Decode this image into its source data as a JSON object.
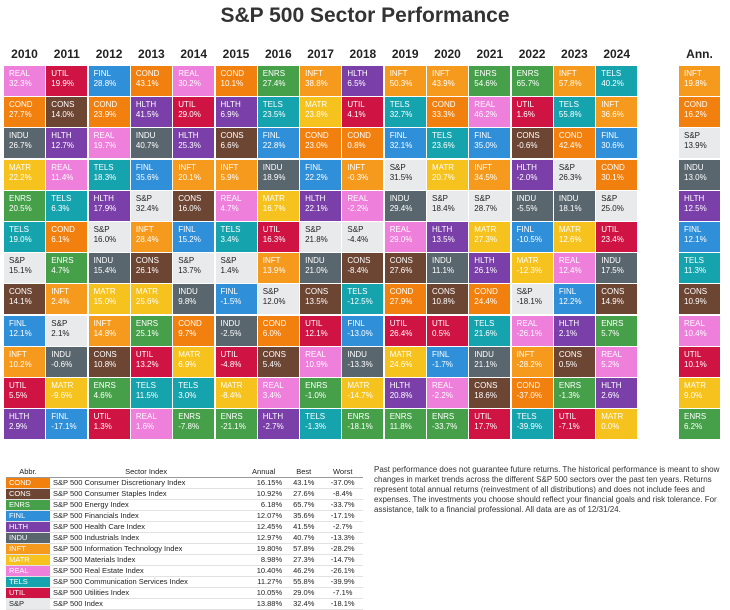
{
  "chart_data": {
    "type": "table",
    "title": "S&P 500 Sector Performance",
    "years": [
      "2010",
      "2011",
      "2012",
      "2013",
      "2014",
      "2015",
      "2016",
      "2017",
      "2018",
      "2019",
      "2020",
      "2021",
      "2022",
      "2023",
      "2024"
    ],
    "ann_label": "Ann.",
    "columns": [
      [
        [
          "REAL",
          "32.3%"
        ],
        [
          "COND",
          "27.7%"
        ],
        [
          "INDU",
          "26.7%"
        ],
        [
          "MATR",
          "22.2%"
        ],
        [
          "ENRS",
          "20.5%"
        ],
        [
          "TELS",
          "19.0%"
        ],
        [
          "S&P",
          "15.1%"
        ],
        [
          "CONS",
          "14.1%"
        ],
        [
          "FINL",
          "12.1%"
        ],
        [
          "INFT",
          "10.2%"
        ],
        [
          "UTIL",
          "5.5%"
        ],
        [
          "HLTH",
          "2.9%"
        ]
      ],
      [
        [
          "UTIL",
          "19.9%"
        ],
        [
          "CONS",
          "14.0%"
        ],
        [
          "HLTH",
          "12.7%"
        ],
        [
          "REAL",
          "11.4%"
        ],
        [
          "TELS",
          "6.3%"
        ],
        [
          "COND",
          "6.1%"
        ],
        [
          "ENRS",
          "4.7%"
        ],
        [
          "INFT",
          "2.4%"
        ],
        [
          "S&P",
          "2.1%"
        ],
        [
          "INDU",
          "-0.6%"
        ],
        [
          "MATR",
          "-9.6%"
        ],
        [
          "FINL",
          "-17.1%"
        ]
      ],
      [
        [
          "FINL",
          "28.8%"
        ],
        [
          "COND",
          "23.9%"
        ],
        [
          "REAL",
          "19.7%"
        ],
        [
          "TELS",
          "18.3%"
        ],
        [
          "HLTH",
          "17.9%"
        ],
        [
          "S&P",
          "16.0%"
        ],
        [
          "INDU",
          "15.4%"
        ],
        [
          "MATR",
          "15.0%"
        ],
        [
          "INFT",
          "14.8%"
        ],
        [
          "CONS",
          "10.8%"
        ],
        [
          "ENRS",
          "4.6%"
        ],
        [
          "UTIL",
          "1.3%"
        ]
      ],
      [
        [
          "COND",
          "43.1%"
        ],
        [
          "HLTH",
          "41.5%"
        ],
        [
          "INDU",
          "40.7%"
        ],
        [
          "FINL",
          "35.6%"
        ],
        [
          "S&P",
          "32.4%"
        ],
        [
          "INFT",
          "28.4%"
        ],
        [
          "CONS",
          "26.1%"
        ],
        [
          "MATR",
          "25.6%"
        ],
        [
          "ENRS",
          "25.1%"
        ],
        [
          "UTIL",
          "13.2%"
        ],
        [
          "TELS",
          "11.5%"
        ],
        [
          "REAL",
          "1.6%"
        ]
      ],
      [
        [
          "REAL",
          "30.2%"
        ],
        [
          "UTIL",
          "29.0%"
        ],
        [
          "HLTH",
          "25.3%"
        ],
        [
          "INFT",
          "20.1%"
        ],
        [
          "CONS",
          "16.0%"
        ],
        [
          "FINL",
          "15.2%"
        ],
        [
          "S&P",
          "13.7%"
        ],
        [
          "INDU",
          "9.8%"
        ],
        [
          "COND",
          "9.7%"
        ],
        [
          "MATR",
          "6.9%"
        ],
        [
          "TELS",
          "3.0%"
        ],
        [
          "ENRS",
          "-7.8%"
        ]
      ],
      [
        [
          "COND",
          "10.1%"
        ],
        [
          "HLTH",
          "6.9%"
        ],
        [
          "CONS",
          "6.6%"
        ],
        [
          "INFT",
          "5.9%"
        ],
        [
          "REAL",
          "4.7%"
        ],
        [
          "TELS",
          "3.4%"
        ],
        [
          "S&P",
          "1.4%"
        ],
        [
          "FINL",
          "-1.5%"
        ],
        [
          "INDU",
          "-2.5%"
        ],
        [
          "UTIL",
          "-4.8%"
        ],
        [
          "MATR",
          "-8.4%"
        ],
        [
          "ENRS",
          "-21.1%"
        ]
      ],
      [
        [
          "ENRS",
          "27.4%"
        ],
        [
          "TELS",
          "23.5%"
        ],
        [
          "FINL",
          "22.8%"
        ],
        [
          "INDU",
          "18.9%"
        ],
        [
          "MATR",
          "16.7%"
        ],
        [
          "UTIL",
          "16.3%"
        ],
        [
          "INFT",
          "13.9%"
        ],
        [
          "S&P",
          "12.0%"
        ],
        [
          "COND",
          "6.0%"
        ],
        [
          "CONS",
          "5.4%"
        ],
        [
          "REAL",
          "3.4%"
        ],
        [
          "HLTH",
          "-2.7%"
        ]
      ],
      [
        [
          "INFT",
          "38.8%"
        ],
        [
          "MATR",
          "23.8%"
        ],
        [
          "COND",
          "23.0%"
        ],
        [
          "FINL",
          "22.2%"
        ],
        [
          "HLTH",
          "22.1%"
        ],
        [
          "S&P",
          "21.8%"
        ],
        [
          "INDU",
          "21.0%"
        ],
        [
          "CONS",
          "13.5%"
        ],
        [
          "UTIL",
          "12.1%"
        ],
        [
          "REAL",
          "10.9%"
        ],
        [
          "ENRS",
          "-1.0%"
        ],
        [
          "TELS",
          "-1.3%"
        ]
      ],
      [
        [
          "HLTH",
          "6.5%"
        ],
        [
          "UTIL",
          "4.1%"
        ],
        [
          "COND",
          "0.8%"
        ],
        [
          "INFT",
          "-0.3%"
        ],
        [
          "REAL",
          "-2.2%"
        ],
        [
          "S&P",
          "-4.4%"
        ],
        [
          "CONS",
          "-8.4%"
        ],
        [
          "TELS",
          "-12.5%"
        ],
        [
          "FINL",
          "-13.0%"
        ],
        [
          "INDU",
          "-13.3%"
        ],
        [
          "MATR",
          "-14.7%"
        ],
        [
          "ENRS",
          "-18.1%"
        ]
      ],
      [
        [
          "INFT",
          "50.3%"
        ],
        [
          "TELS",
          "32.7%"
        ],
        [
          "FINL",
          "32.1%"
        ],
        [
          "S&P",
          "31.5%"
        ],
        [
          "INDU",
          "29.4%"
        ],
        [
          "REAL",
          "29.0%"
        ],
        [
          "CONS",
          "27.6%"
        ],
        [
          "COND",
          "27.9%"
        ],
        [
          "UTIL",
          "26.4%"
        ],
        [
          "MATR",
          "24.6%"
        ],
        [
          "HLTH",
          "20.8%"
        ],
        [
          "ENRS",
          "11.8%"
        ]
      ],
      [
        [
          "INFT",
          "43.9%"
        ],
        [
          "COND",
          "33.3%"
        ],
        [
          "TELS",
          "23.6%"
        ],
        [
          "MATR",
          "20.7%"
        ],
        [
          "S&P",
          "18.4%"
        ],
        [
          "HLTH",
          "13.5%"
        ],
        [
          "INDU",
          "11.1%"
        ],
        [
          "CONS",
          "10.8%"
        ],
        [
          "UTIL",
          "0.5%"
        ],
        [
          "FINL",
          "-1.7%"
        ],
        [
          "REAL",
          "-2.2%"
        ],
        [
          "ENRS",
          "-33.7%"
        ]
      ],
      [
        [
          "ENRS",
          "54.6%"
        ],
        [
          "REAL",
          "46.2%"
        ],
        [
          "FINL",
          "35.0%"
        ],
        [
          "INFT",
          "34.5%"
        ],
        [
          "S&P",
          "28.7%"
        ],
        [
          "MATR",
          "27.3%"
        ],
        [
          "HLTH",
          "26.1%"
        ],
        [
          "COND",
          "24.4%"
        ],
        [
          "TELS",
          "21.6%"
        ],
        [
          "INDU",
          "21.1%"
        ],
        [
          "CONS",
          "18.6%"
        ],
        [
          "UTIL",
          "17.7%"
        ]
      ],
      [
        [
          "ENRS",
          "65.7%"
        ],
        [
          "UTIL",
          "1.6%"
        ],
        [
          "CONS",
          "-0.6%"
        ],
        [
          "HLTH",
          "-2.0%"
        ],
        [
          "INDU",
          "-5.5%"
        ],
        [
          "FINL",
          "-10.5%"
        ],
        [
          "MATR",
          "-12.3%"
        ],
        [
          "S&P",
          "-18.1%"
        ],
        [
          "REAL",
          "-26.1%"
        ],
        [
          "INFT",
          "-28.2%"
        ],
        [
          "COND",
          "-37.0%"
        ],
        [
          "TELS",
          "-39.9%"
        ]
      ],
      [
        [
          "INFT",
          "57.8%"
        ],
        [
          "TELS",
          "55.8%"
        ],
        [
          "COND",
          "42.4%"
        ],
        [
          "S&P",
          "26.3%"
        ],
        [
          "INDU",
          "18.1%"
        ],
        [
          "MATR",
          "12.6%"
        ],
        [
          "REAL",
          "12.4%"
        ],
        [
          "FINL",
          "12.2%"
        ],
        [
          "HLTH",
          "2.1%"
        ],
        [
          "CONS",
          "0.5%"
        ],
        [
          "ENRS",
          "-1.3%"
        ],
        [
          "UTIL",
          "-7.1%"
        ]
      ],
      [
        [
          "TELS",
          "40.2%"
        ],
        [
          "INFT",
          "36.6%"
        ],
        [
          "FINL",
          "30.6%"
        ],
        [
          "COND",
          "30.1%"
        ],
        [
          "S&P",
          "25.0%"
        ],
        [
          "UTIL",
          "23.4%"
        ],
        [
          "INDU",
          "17.5%"
        ],
        [
          "CONS",
          "14.9%"
        ],
        [
          "ENRS",
          "5.7%"
        ],
        [
          "REAL",
          "5.2%"
        ],
        [
          "HLTH",
          "2.6%"
        ],
        [
          "MATR",
          "0.0%"
        ]
      ]
    ],
    "annualized": [
      [
        "INFT",
        "19.8%"
      ],
      [
        "COND",
        "16.2%"
      ],
      [
        "S&P",
        "13.9%"
      ],
      [
        "INDU",
        "13.0%"
      ],
      [
        "HLTH",
        "12.5%"
      ],
      [
        "FINL",
        "12.1%"
      ],
      [
        "TELS",
        "11.3%"
      ],
      [
        "CONS",
        "10.9%"
      ],
      [
        "REAL",
        "10.4%"
      ],
      [
        "UTIL",
        "10.1%"
      ],
      [
        "MATR",
        "9.0%"
      ],
      [
        "ENRS",
        "6.2%"
      ]
    ],
    "sector_colors": {
      "COND": "#f2800e",
      "CONS": "#6d4533",
      "ENRS": "#46a04a",
      "FINL": "#2f8fd9",
      "HLTH": "#7a3fa8",
      "INDU": "#59666e",
      "INFT": "#f59a1c",
      "MATR": "#f6c21d",
      "REAL": "#ee7fda",
      "TELS": "#15a3ad",
      "UTIL": "#cf1444",
      "S&P": "#e8eaec"
    },
    "dark_text_codes": [
      "S&P"
    ]
  },
  "legend": {
    "headers": [
      "Abbr.",
      "Sector Index",
      "Annual",
      "Best",
      "Worst"
    ],
    "rows": [
      {
        "abbr": "COND",
        "name": "S&P 500 Consumer Discretionary Index",
        "annual": "16.15%",
        "best": "43.1%",
        "worst": "-37.0%"
      },
      {
        "abbr": "CONS",
        "name": "S&P 500 Consumer Staples Index",
        "annual": "10.92%",
        "best": "27.6%",
        "worst": "-8.4%"
      },
      {
        "abbr": "ENRS",
        "name": "S&P 500 Energy Index",
        "annual": "6.18%",
        "best": "65.7%",
        "worst": "-33.7%"
      },
      {
        "abbr": "FINL",
        "name": "S&P 500 Financials Index",
        "annual": "12.07%",
        "best": "35.6%",
        "worst": "-17.1%"
      },
      {
        "abbr": "HLTH",
        "name": "S&P 500 Health Care Index",
        "annual": "12.45%",
        "best": "41.5%",
        "worst": "-2.7%"
      },
      {
        "abbr": "INDU",
        "name": "S&P 500 Industrials Index",
        "annual": "12.97%",
        "best": "40.7%",
        "worst": "-13.3%"
      },
      {
        "abbr": "INFT",
        "name": "S&P 500 Information Technology Index",
        "annual": "19.80%",
        "best": "57.8%",
        "worst": "-28.2%"
      },
      {
        "abbr": "MATR",
        "name": "S&P 500 Materials Index",
        "annual": "8.98%",
        "best": "27.3%",
        "worst": "-14.7%"
      },
      {
        "abbr": "REAL",
        "name": "S&P 500 Real Estate Index",
        "annual": "10.40%",
        "best": "46.2%",
        "worst": "-26.1%"
      },
      {
        "abbr": "TELS",
        "name": "S&P 500 Communication Services Index",
        "annual": "11.27%",
        "best": "55.8%",
        "worst": "-39.9%"
      },
      {
        "abbr": "UTIL",
        "name": "S&P 500 Utilities Index",
        "annual": "10.05%",
        "best": "29.0%",
        "worst": "-7.1%"
      },
      {
        "abbr": "S&P",
        "name": "S&P 500 Index",
        "annual": "13.88%",
        "best": "32.4%",
        "worst": "-18.1%"
      }
    ]
  },
  "disclaimer": "Past performance does not guarantee future returns. The historical performance is meant to show changes in market trends across the different S&P 500 sectors over the past ten years. Returns represent total annual returns (reinvestment of all distributions) and does not include fees and expenses. The investments you choose should reflect your financial goals and risk tolerance. For assistance, talk to a financial professional. All data are as of 12/31/24."
}
